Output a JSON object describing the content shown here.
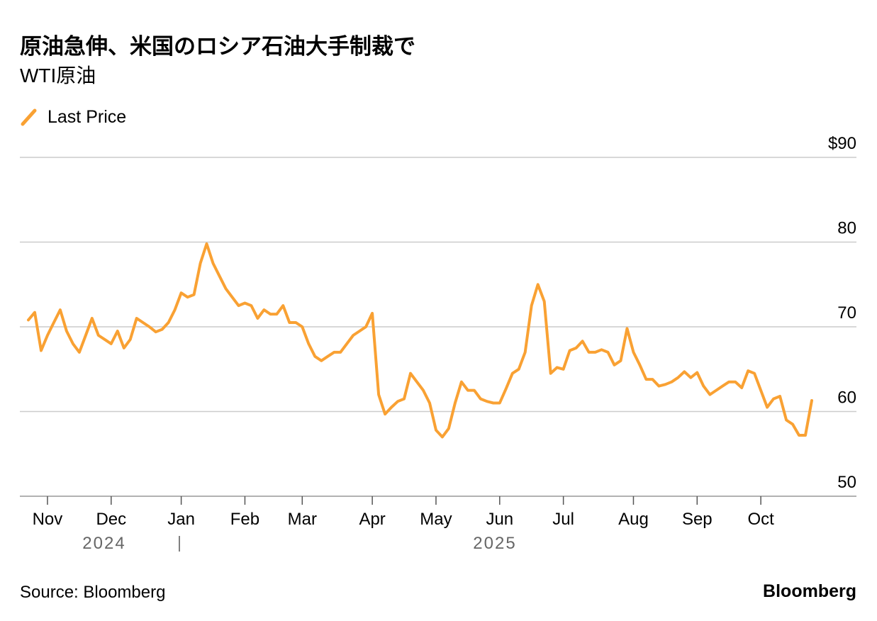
{
  "chart_data": {
    "type": "line",
    "title": "原油急伸、米国のロシア石油大手制裁で",
    "subtitle": "WTI原油",
    "source": "Source: Bloomberg",
    "brand": "Bloomberg",
    "annotations": [
      "2024",
      "2025"
    ],
    "categories": [
      null,
      null,
      null,
      "Nov",
      null,
      null,
      null,
      null,
      null,
      null,
      null,
      null,
      null,
      "Dec",
      null,
      null,
      null,
      null,
      null,
      null,
      null,
      null,
      null,
      null,
      "Jan",
      null,
      null,
      null,
      null,
      null,
      null,
      null,
      null,
      null,
      "Feb",
      null,
      null,
      null,
      null,
      null,
      null,
      null,
      null,
      "Mar",
      null,
      null,
      null,
      null,
      null,
      null,
      null,
      null,
      null,
      null,
      "Apr",
      null,
      null,
      null,
      null,
      null,
      null,
      null,
      null,
      null,
      "May",
      null,
      null,
      null,
      null,
      null,
      null,
      null,
      null,
      null,
      "Jun",
      null,
      null,
      null,
      null,
      null,
      null,
      null,
      null,
      null,
      "Jul",
      null,
      null,
      null,
      null,
      null,
      null,
      null,
      null,
      null,
      null,
      "Aug",
      null,
      null,
      null,
      null,
      null,
      null,
      null,
      null,
      null,
      "Sep",
      null,
      null,
      null,
      null,
      null,
      null,
      null,
      null,
      null,
      "Oct",
      null,
      null,
      null,
      null,
      null,
      null,
      null,
      null
    ],
    "series": [
      {
        "name": "Last Price",
        "color": "#f9a133",
        "values": [
          70.8,
          71.7,
          67.2,
          69,
          70.5,
          72,
          69.5,
          68,
          67,
          69,
          71,
          69,
          68.5,
          68,
          69.5,
          67.5,
          68.5,
          71,
          70.5,
          70,
          69.4,
          69.7,
          70.5,
          72,
          74,
          73.5,
          73.8,
          77.5,
          79.8,
          77.5,
          76,
          74.5,
          73.5,
          72.5,
          72.8,
          72.5,
          71,
          72,
          71.5,
          71.5,
          72.5,
          70.5,
          70.5,
          70,
          68,
          66.5,
          66,
          66.5,
          67,
          67,
          68,
          69,
          69.5,
          70,
          71.6,
          62,
          59.7,
          60.5,
          61.2,
          61.5,
          64.5,
          63.5,
          62.5,
          61,
          57.8,
          57,
          58,
          61,
          63.5,
          62.5,
          62.5,
          61.5,
          61.2,
          61,
          61,
          62.7,
          64.5,
          65,
          67,
          72.5,
          75,
          73,
          64.5,
          65.2,
          65,
          67.2,
          67.5,
          68.3,
          67,
          67,
          67.3,
          67,
          65.5,
          66,
          69.8,
          67,
          65.5,
          63.8,
          63.8,
          63,
          63.2,
          63.5,
          64,
          64.7,
          64,
          64.6,
          63,
          62,
          62.5,
          63,
          63.5,
          63.5,
          62.8,
          64.8,
          64.5,
          62.5,
          60.5,
          61.5,
          61.8,
          59,
          58.5,
          57.2,
          57.2,
          61.3
        ]
      }
    ],
    "ylim": [
      50,
      90
    ],
    "yticks": [
      50,
      60,
      70,
      80,
      {
        "value": 90,
        "label": "$90"
      }
    ],
    "grid": true
  }
}
